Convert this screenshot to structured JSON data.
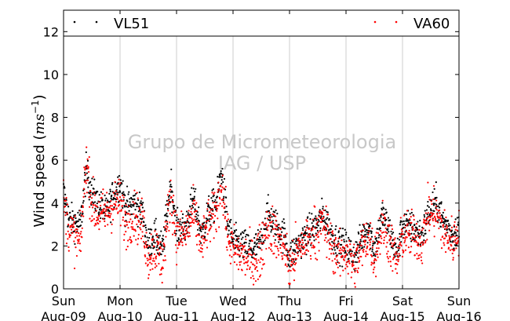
{
  "chart_data": {
    "type": "scatter",
    "ylabel_main": "Wind speed (",
    "ylabel_unit_base": "ms",
    "ylabel_unit_exp": "−1",
    "ylabel_close": ")",
    "ylim": [
      0,
      13
    ],
    "yticks": [
      0,
      2,
      4,
      6,
      8,
      10,
      12
    ],
    "xlim": [
      "2015-08-09 00:00",
      "2015-08-16 00:00"
    ],
    "xticks": [
      {
        "day": "Sun",
        "date": "Aug-09"
      },
      {
        "day": "Mon",
        "date": "Aug-10"
      },
      {
        "day": "Tue",
        "date": "Aug-11"
      },
      {
        "day": "Wed",
        "date": "Aug-12"
      },
      {
        "day": "Thu",
        "date": "Aug-13"
      },
      {
        "day": "Fri",
        "date": "Aug-14"
      },
      {
        "day": "Sat",
        "date": "Aug-15"
      },
      {
        "day": "Sun",
        "date": "Aug-16"
      }
    ],
    "grid": "vertical",
    "legend_position": "top",
    "watermark": [
      "Grupo de Micrometeorologia",
      "IAG / USP"
    ],
    "series": [
      {
        "name": "VL51",
        "color": "#000000",
        "profile_x_days": [
          0,
          0.1,
          0.3,
          0.4,
          0.5,
          0.6,
          0.75,
          0.9,
          1.0,
          1.1,
          1.25,
          1.4,
          1.5,
          1.6,
          1.75,
          1.9,
          2.0,
          2.15,
          2.3,
          2.45,
          2.55,
          2.7,
          2.8,
          2.9,
          3.0,
          3.2,
          3.35,
          3.5,
          3.6,
          3.75,
          3.9,
          4.0,
          4.2,
          4.4,
          4.5,
          4.6,
          4.75,
          4.9,
          5.0,
          5.15,
          5.3,
          5.4,
          5.5,
          5.65,
          5.8,
          5.9,
          6.0,
          6.2,
          6.35,
          6.45,
          6.6,
          6.75,
          6.9,
          7.0
        ],
        "profile_y": [
          4.5,
          3.2,
          3.0,
          5.5,
          4.5,
          4.0,
          3.5,
          4.5,
          5.0,
          3.8,
          4.0,
          3.5,
          2.0,
          2.5,
          1.8,
          5.0,
          2.8,
          2.8,
          4.2,
          2.5,
          3.5,
          4.0,
          5.5,
          3.0,
          2.2,
          2.0,
          1.8,
          2.2,
          3.5,
          3.0,
          2.5,
          1.5,
          2.2,
          2.8,
          3.0,
          3.5,
          2.5,
          2.0,
          2.0,
          1.5,
          2.5,
          3.0,
          1.8,
          3.5,
          2.5,
          1.5,
          3.0,
          2.8,
          2.5,
          3.5,
          4.0,
          3.0,
          2.5,
          3.0
        ]
      },
      {
        "name": "VA60",
        "color": "#ff0000",
        "profile_x_days": [
          0,
          0.1,
          0.3,
          0.4,
          0.5,
          0.6,
          0.75,
          0.9,
          1.0,
          1.1,
          1.25,
          1.4,
          1.5,
          1.6,
          1.75,
          1.9,
          2.0,
          2.15,
          2.3,
          2.45,
          2.55,
          2.7,
          2.8,
          2.9,
          3.0,
          3.2,
          3.35,
          3.5,
          3.6,
          3.75,
          3.9,
          4.0,
          4.2,
          4.4,
          4.5,
          4.6,
          4.75,
          4.9,
          5.0,
          5.15,
          5.3,
          5.4,
          5.5,
          5.65,
          5.8,
          5.9,
          6.0,
          6.2,
          6.35,
          6.45,
          6.6,
          6.75,
          6.9,
          7.0
        ],
        "profile_y": [
          4.0,
          2.8,
          2.0,
          6.0,
          4.0,
          3.5,
          3.5,
          4.0,
          4.0,
          3.0,
          3.5,
          3.0,
          1.5,
          2.0,
          1.2,
          4.5,
          2.5,
          2.5,
          3.5,
          2.0,
          3.0,
          3.5,
          5.0,
          2.5,
          1.8,
          1.5,
          1.2,
          1.8,
          3.0,
          2.5,
          2.0,
          1.0,
          2.0,
          2.5,
          2.8,
          3.0,
          2.0,
          1.5,
          1.8,
          1.0,
          2.0,
          2.5,
          1.5,
          3.0,
          2.0,
          1.2,
          2.5,
          2.5,
          2.2,
          3.5,
          3.5,
          2.5,
          2.2,
          2.8
        ]
      }
    ]
  }
}
